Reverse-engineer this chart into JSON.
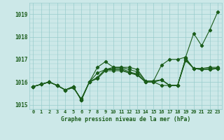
{
  "title": "Graphe pression niveau de la mer (hPa)",
  "background_color": "#cce8e8",
  "grid_color": "#99cccc",
  "line_color": "#1a5c1a",
  "x_labels": [
    "0",
    "1",
    "2",
    "3",
    "4",
    "5",
    "6",
    "7",
    "8",
    "9",
    "10",
    "11",
    "12",
    "13",
    "14",
    "15",
    "16",
    "17",
    "18",
    "19",
    "20",
    "21",
    "22",
    "23"
  ],
  "ylim": [
    1014.8,
    1019.5
  ],
  "yticks": [
    1015,
    1016,
    1017,
    1018,
    1019
  ],
  "series": [
    [
      1015.8,
      1015.9,
      1016.0,
      1015.85,
      1015.65,
      1015.8,
      1015.2,
      1016.0,
      1016.65,
      1016.9,
      1016.65,
      1016.65,
      1016.65,
      1016.55,
      1016.05,
      1016.05,
      1016.75,
      1017.0,
      1017.0,
      1017.1,
      1018.15,
      1017.6,
      1018.3,
      1019.1
    ],
    [
      1015.8,
      1015.9,
      1016.0,
      1015.85,
      1015.65,
      1015.8,
      1015.2,
      1016.0,
      1016.4,
      1016.55,
      1016.65,
      1016.65,
      1016.55,
      1016.45,
      1016.05,
      1016.05,
      1016.1,
      1015.85,
      1015.85,
      1017.05,
      1016.6,
      1016.6,
      1016.65,
      1016.65
    ],
    [
      1015.8,
      1015.9,
      1016.0,
      1015.85,
      1015.65,
      1015.8,
      1015.2,
      1016.0,
      1016.2,
      1016.55,
      1016.6,
      1016.6,
      1016.45,
      1016.35,
      1016.0,
      1016.0,
      1015.85,
      1015.85,
      1015.85,
      1016.95,
      1016.6,
      1016.6,
      1016.6,
      1016.6
    ],
    [
      1015.8,
      1015.9,
      1016.0,
      1015.85,
      1015.65,
      1015.75,
      1015.25,
      1016.0,
      1016.2,
      1016.55,
      1016.55,
      1016.55,
      1016.4,
      1016.3,
      1016.0,
      1016.0,
      1016.1,
      1015.85,
      1015.85,
      1017.05,
      1016.6,
      1016.55,
      1016.55,
      1016.6
    ],
    [
      1015.8,
      1015.9,
      1016.0,
      1015.85,
      1015.65,
      1015.75,
      1015.25,
      1016.0,
      1016.15,
      1016.5,
      1016.5,
      1016.5,
      1016.4,
      1016.35,
      1016.0,
      1016.0,
      1016.1,
      1015.85,
      1015.85,
      1017.0,
      1016.6,
      1016.55,
      1016.55,
      1016.6
    ]
  ]
}
